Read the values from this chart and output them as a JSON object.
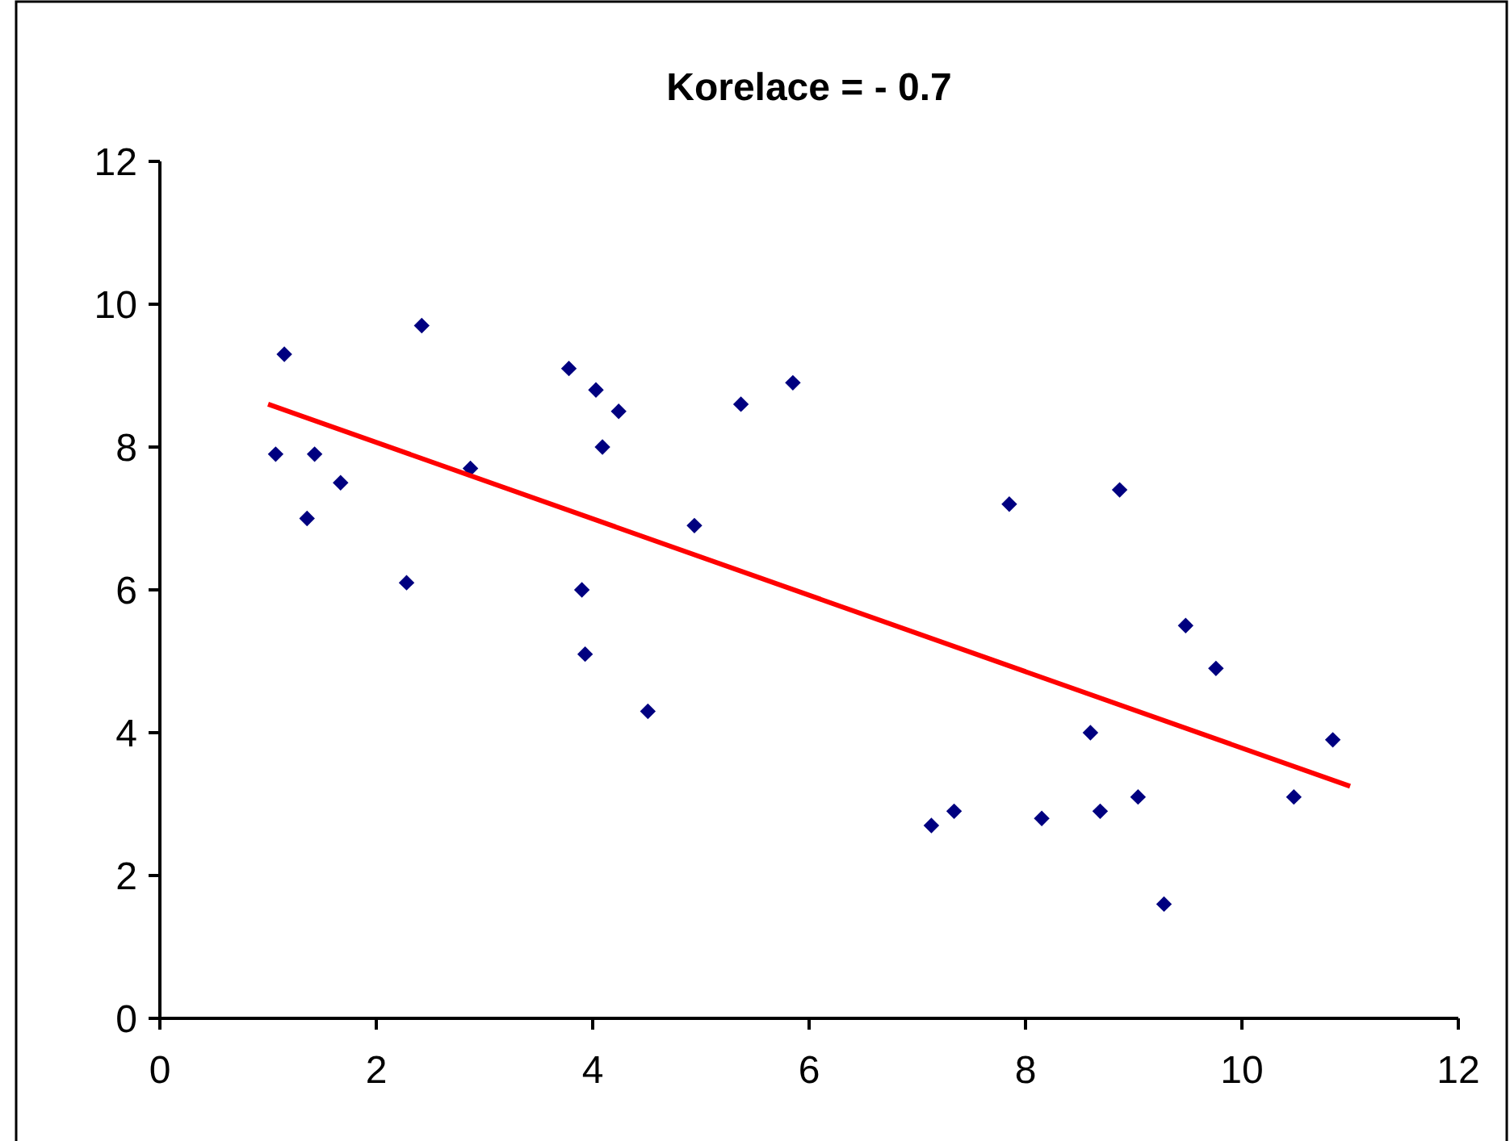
{
  "chart_data": {
    "type": "scatter",
    "title": "Korelace = - 0.7",
    "xlim": [
      0,
      12
    ],
    "xticks": [
      0,
      2,
      4,
      6,
      8,
      10,
      12
    ],
    "ylim": [
      0,
      12
    ],
    "yticks": [
      0,
      2,
      4,
      6,
      8,
      10,
      12
    ],
    "grid": false,
    "marker": "diamond",
    "series": [
      {
        "color": "#000080",
        "x": [
          1.07,
          1.15,
          1.43,
          1.36,
          1.67,
          2.28,
          2.42,
          2.87,
          3.78,
          4.03,
          4.24,
          4.09,
          3.9,
          3.93,
          4.51,
          4.94,
          5.37,
          5.85,
          7.13,
          7.34,
          7.85,
          8.15,
          8.6,
          8.69,
          8.87,
          9.04,
          9.28,
          9.48,
          9.76,
          10.48,
          10.84
        ],
        "values": [
          7.9,
          9.3,
          7.9,
          7.0,
          7.5,
          6.1,
          9.7,
          7.7,
          9.1,
          8.8,
          8.5,
          8.0,
          6.0,
          5.1,
          4.3,
          6.9,
          8.6,
          8.9,
          2.7,
          2.9,
          7.2,
          2.8,
          4.0,
          2.9,
          7.4,
          3.1,
          1.6,
          5.5,
          4.9,
          3.1,
          3.9
        ]
      },
      {
        "type": "line",
        "color": "#ff0000",
        "x": [
          1,
          11
        ],
        "values": [
          8.6,
          3.25
        ],
        "marker": "none",
        "line_style": "solid"
      }
    ]
  }
}
